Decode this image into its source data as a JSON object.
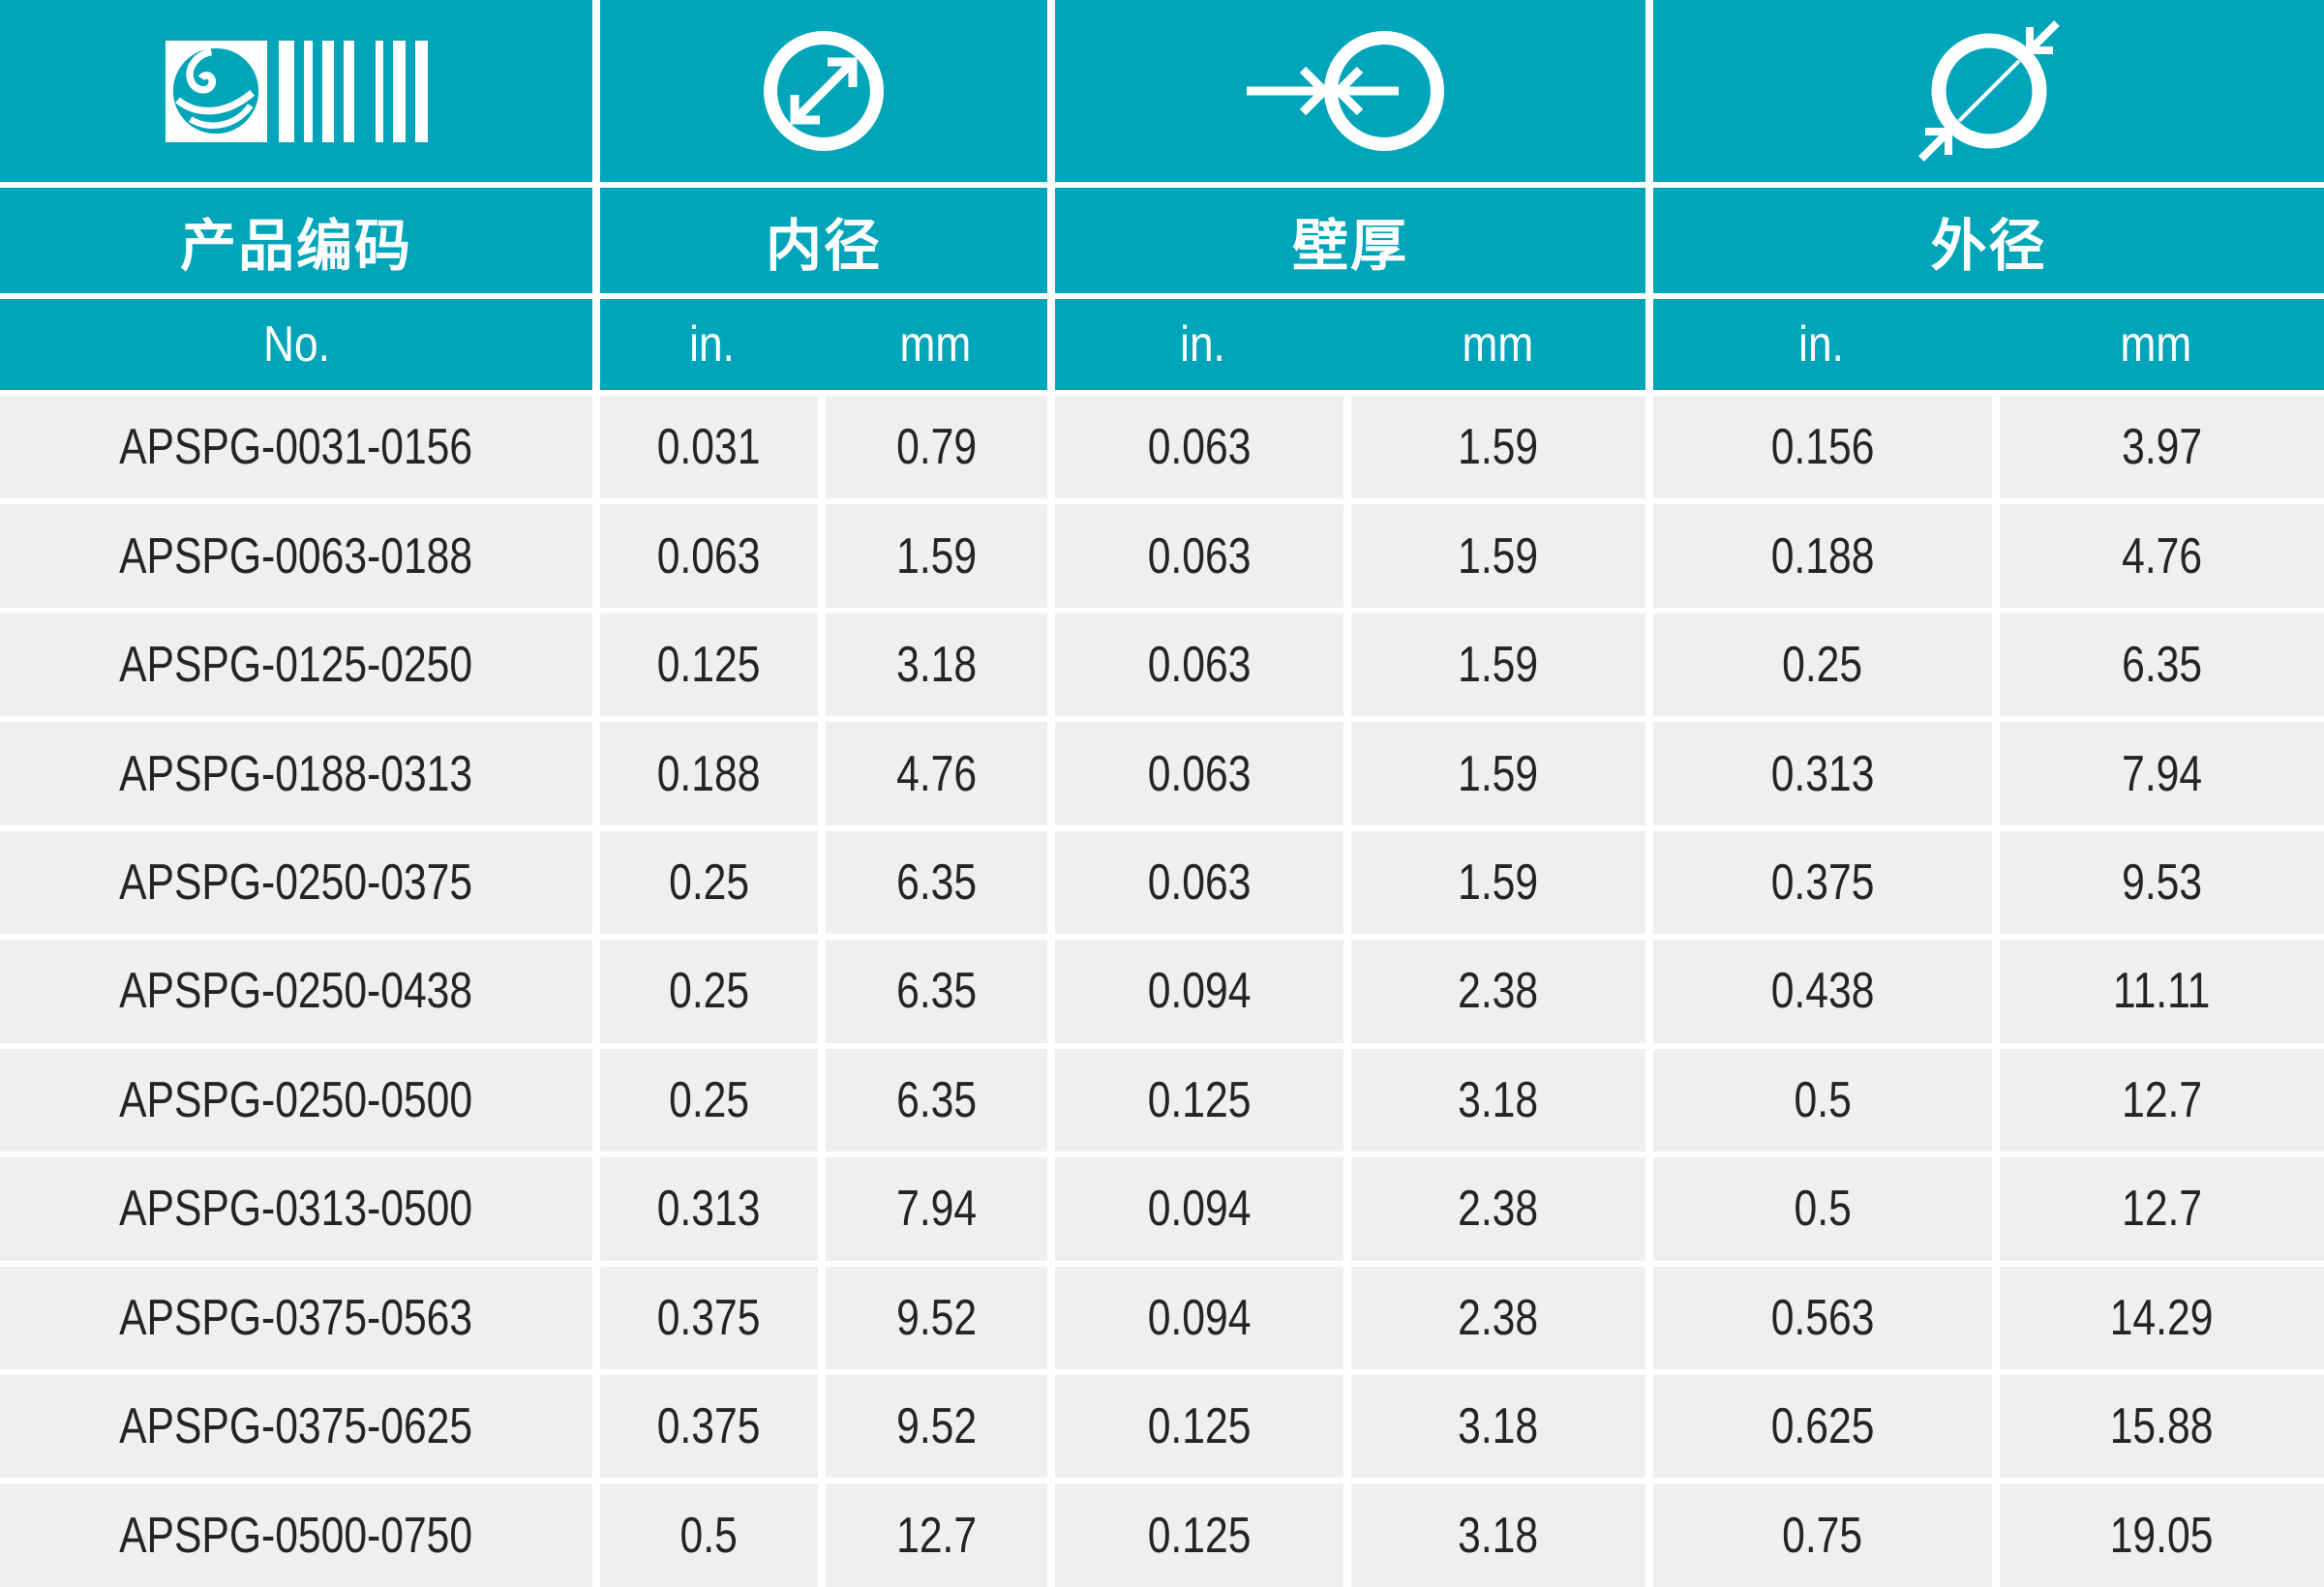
{
  "theme": {
    "teal": "#01A5BA",
    "row_bg": "#EFEFEF",
    "text": "#242424",
    "divider": "#FFFFFF"
  },
  "header": {
    "icons": [
      {
        "name": "logo-barcode-icon",
        "meaning": "brand logo with barcode"
      },
      {
        "name": "inner-diameter-icon",
        "meaning": "circle with internal double arrow"
      },
      {
        "name": "wall-thickness-icon",
        "meaning": "circle with opposing arrows at wall"
      },
      {
        "name": "outer-diameter-icon",
        "meaning": "circle with external inward arrows"
      }
    ],
    "groups": [
      {
        "label": "产品编码"
      },
      {
        "label": "内径"
      },
      {
        "label": "壁厚"
      },
      {
        "label": "外径"
      }
    ],
    "subheaders": {
      "no": "No.",
      "id_in": "in.",
      "id_mm": "mm",
      "wt_in": "in.",
      "wt_mm": "mm",
      "od_in": "in.",
      "od_mm": "mm"
    }
  },
  "table": {
    "columns": [
      "No.",
      "内径 in.",
      "内径 mm",
      "壁厚 in.",
      "壁厚 mm",
      "外径 in.",
      "外径 mm"
    ],
    "rows": [
      [
        "APSPG-0031-0156",
        "0.031",
        "0.79",
        "0.063",
        "1.59",
        "0.156",
        "3.97"
      ],
      [
        "APSPG-0063-0188",
        "0.063",
        "1.59",
        "0.063",
        "1.59",
        "0.188",
        "4.76"
      ],
      [
        "APSPG-0125-0250",
        "0.125",
        "3.18",
        "0.063",
        "1.59",
        "0.25",
        "6.35"
      ],
      [
        "APSPG-0188-0313",
        "0.188",
        "4.76",
        "0.063",
        "1.59",
        "0.313",
        "7.94"
      ],
      [
        "APSPG-0250-0375",
        "0.25",
        "6.35",
        "0.063",
        "1.59",
        "0.375",
        "9.53"
      ],
      [
        "APSPG-0250-0438",
        "0.25",
        "6.35",
        "0.094",
        "2.38",
        "0.438",
        "11.11"
      ],
      [
        "APSPG-0250-0500",
        "0.25",
        "6.35",
        "0.125",
        "3.18",
        "0.5",
        "12.7"
      ],
      [
        "APSPG-0313-0500",
        "0.313",
        "7.94",
        "0.094",
        "2.38",
        "0.5",
        "12.7"
      ],
      [
        "APSPG-0375-0563",
        "0.375",
        "9.52",
        "0.094",
        "2.38",
        "0.563",
        "14.29"
      ],
      [
        "APSPG-0375-0625",
        "0.375",
        "9.52",
        "0.125",
        "3.18",
        "0.625",
        "15.88"
      ],
      [
        "APSPG-0500-0750",
        "0.5",
        "12.7",
        "0.125",
        "3.18",
        "0.75",
        "19.05"
      ]
    ]
  }
}
